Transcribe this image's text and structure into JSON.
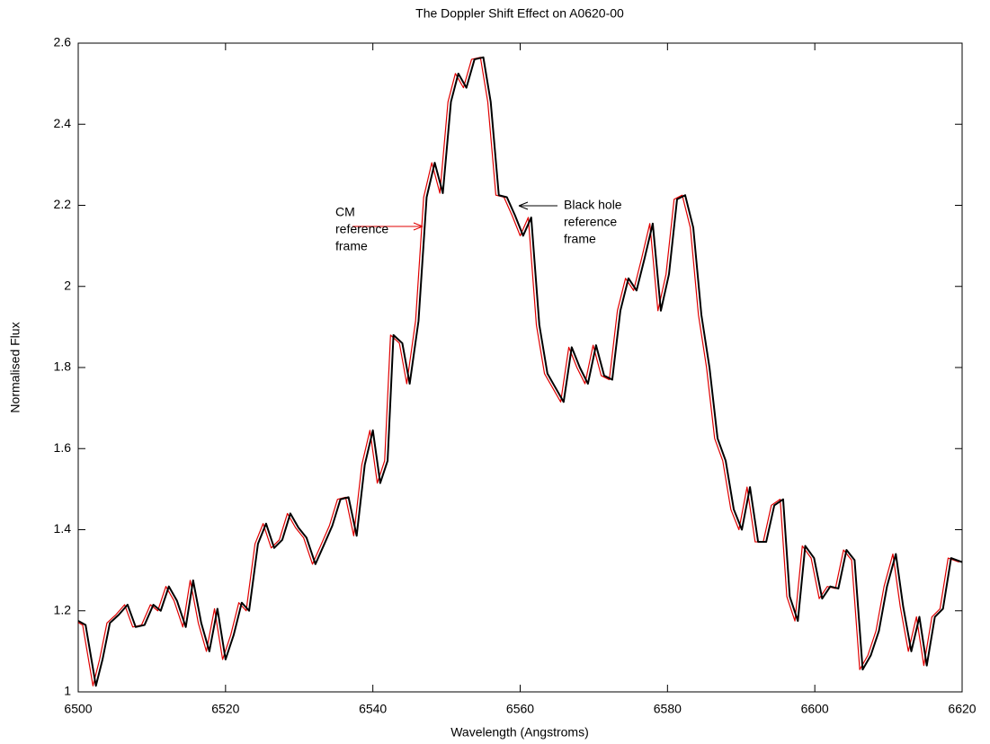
{
  "chart_data": {
    "type": "line",
    "title": "The Doppler Shift Effect on A0620-00",
    "xlabel": "Wavelength (Angstroms)",
    "ylabel": "Normalised Flux",
    "xlim": [
      6500,
      6620
    ],
    "xticks": [
      6500,
      6520,
      6540,
      6560,
      6580,
      6600,
      6620
    ],
    "ylim": [
      1,
      2.6
    ],
    "yticks": [
      1,
      1.2,
      1.4,
      1.6,
      1.8,
      2,
      2.2,
      2.4,
      2.6
    ],
    "annotations": [
      {
        "lines": [
          "CM",
          "reference",
          "frame"
        ],
        "color": "#e00000"
      },
      {
        "lines": [
          "Black hole",
          "reference",
          "frame"
        ],
        "color": "#000000"
      }
    ],
    "series": [
      {
        "color": "#e00000",
        "x": [
          6499.6,
          6500.6,
          6502,
          6502.9,
          6503.9,
          6505.1,
          6506.3,
          6507.4,
          6508.6,
          6509.8,
          6510.8,
          6511.9,
          6513,
          6514.2,
          6515.2,
          6516.3,
          6517.4,
          6518.5,
          6519.6,
          6520.7,
          6521.8,
          6522.8,
          6524,
          6525.1,
          6526.2,
          6527.3,
          6528.4,
          6529.5,
          6530.6,
          6531.8,
          6532.9,
          6534.1,
          6535.2,
          6536.3,
          6537.4,
          6538.5,
          6539.6,
          6540.6,
          6541.6,
          6542.4,
          6543.6,
          6544.6,
          6545.8,
          6546.9,
          6548,
          6549.1,
          6550.2,
          6551.2,
          6552.3,
          6553.4,
          6554.6,
          6555.6,
          6556.7,
          6557.8,
          6558.9,
          6560,
          6561.1,
          6562.2,
          6563.3,
          6564.4,
          6565.5,
          6566.6,
          6567.7,
          6568.8,
          6569.9,
          6571,
          6572.1,
          6573.2,
          6574.3,
          6575.4,
          6576.5,
          6577.6,
          6578.7,
          6579.8,
          6580.9,
          6582,
          6583.1,
          6584.2,
          6585.3,
          6586.4,
          6587.5,
          6588.6,
          6589.7,
          6590.8,
          6591.9,
          6593,
          6594.1,
          6595.3,
          6596.2,
          6597.3,
          6598.3,
          6599.5,
          6600.6,
          6601.7,
          6602.8,
          6603.9,
          6605,
          6606.1,
          6607.2,
          6608.3,
          6609.4,
          6610.6,
          6611.6,
          6612.7,
          6613.8,
          6614.8,
          6615.9,
          6617,
          6618.1,
          6619.6
        ],
        "values": [
          1.175,
          1.165,
          1.015,
          1.08,
          1.17,
          1.19,
          1.215,
          1.16,
          1.165,
          1.215,
          1.2,
          1.26,
          1.225,
          1.16,
          1.275,
          1.17,
          1.1,
          1.205,
          1.08,
          1.14,
          1.22,
          1.2,
          1.365,
          1.415,
          1.355,
          1.375,
          1.44,
          1.405,
          1.38,
          1.315,
          1.36,
          1.41,
          1.475,
          1.48,
          1.385,
          1.56,
          1.645,
          1.515,
          1.57,
          1.88,
          1.86,
          1.76,
          1.915,
          2.22,
          2.305,
          2.23,
          2.455,
          2.525,
          2.49,
          2.56,
          2.565,
          2.455,
          2.225,
          2.22,
          2.175,
          2.125,
          2.17,
          1.905,
          1.785,
          1.75,
          1.715,
          1.85,
          1.8,
          1.76,
          1.855,
          1.78,
          1.77,
          1.94,
          2.02,
          1.99,
          2.07,
          2.155,
          1.94,
          2.03,
          2.215,
          2.225,
          2.145,
          1.93,
          1.8,
          1.625,
          1.57,
          1.45,
          1.4,
          1.505,
          1.37,
          1.37,
          1.46,
          1.475,
          1.235,
          1.175,
          1.36,
          1.33,
          1.23,
          1.26,
          1.255,
          1.35,
          1.325,
          1.055,
          1.09,
          1.15,
          1.26,
          1.34,
          1.21,
          1.1,
          1.185,
          1.065,
          1.185,
          1.205,
          1.33,
          1.32
        ]
      },
      {
        "color": "#000000",
        "x": [
          6500,
          6501,
          6502.4,
          6503.3,
          6504.3,
          6505.5,
          6506.7,
          6507.8,
          6509,
          6510.2,
          6511.2,
          6512.3,
          6513.4,
          6514.6,
          6515.6,
          6516.7,
          6517.8,
          6518.9,
          6520,
          6521.1,
          6522.2,
          6523.2,
          6524.4,
          6525.5,
          6526.6,
          6527.7,
          6528.8,
          6529.9,
          6531,
          6532.2,
          6533.3,
          6534.5,
          6535.6,
          6536.7,
          6537.8,
          6538.9,
          6540,
          6541,
          6542,
          6542.8,
          6544,
          6545,
          6546.2,
          6547.3,
          6548.4,
          6549.5,
          6550.6,
          6551.6,
          6552.7,
          6553.8,
          6555,
          6556,
          6557.1,
          6558.2,
          6559.3,
          6560.4,
          6561.5,
          6562.6,
          6563.7,
          6564.8,
          6565.9,
          6567,
          6568.1,
          6569.2,
          6570.3,
          6571.4,
          6572.5,
          6573.6,
          6574.7,
          6575.8,
          6576.9,
          6578,
          6579.1,
          6580.2,
          6581.3,
          6582.4,
          6583.5,
          6584.6,
          6585.7,
          6586.8,
          6587.9,
          6589,
          6590.1,
          6591.2,
          6592.3,
          6593.4,
          6594.5,
          6595.7,
          6596.6,
          6597.7,
          6598.7,
          6599.9,
          6601,
          6602.1,
          6603.2,
          6604.3,
          6605.4,
          6606.5,
          6607.6,
          6608.7,
          6609.8,
          6611,
          6612,
          6613.1,
          6614.2,
          6615.2,
          6616.3,
          6617.4,
          6618.5,
          6620
        ],
        "values": [
          1.175,
          1.165,
          1.015,
          1.08,
          1.17,
          1.19,
          1.215,
          1.16,
          1.165,
          1.215,
          1.2,
          1.26,
          1.225,
          1.16,
          1.275,
          1.17,
          1.1,
          1.205,
          1.08,
          1.14,
          1.22,
          1.2,
          1.365,
          1.415,
          1.355,
          1.375,
          1.44,
          1.405,
          1.38,
          1.315,
          1.36,
          1.41,
          1.475,
          1.48,
          1.385,
          1.56,
          1.645,
          1.515,
          1.57,
          1.88,
          1.86,
          1.76,
          1.915,
          2.22,
          2.305,
          2.23,
          2.455,
          2.525,
          2.49,
          2.56,
          2.565,
          2.455,
          2.225,
          2.22,
          2.175,
          2.125,
          2.17,
          1.905,
          1.785,
          1.75,
          1.715,
          1.85,
          1.8,
          1.76,
          1.855,
          1.78,
          1.77,
          1.94,
          2.02,
          1.99,
          2.07,
          2.155,
          1.94,
          2.03,
          2.215,
          2.225,
          2.145,
          1.93,
          1.8,
          1.625,
          1.57,
          1.45,
          1.4,
          1.505,
          1.37,
          1.37,
          1.46,
          1.475,
          1.235,
          1.175,
          1.36,
          1.33,
          1.23,
          1.26,
          1.255,
          1.35,
          1.325,
          1.055,
          1.09,
          1.15,
          1.26,
          1.34,
          1.21,
          1.1,
          1.185,
          1.065,
          1.185,
          1.205,
          1.33,
          1.32
        ]
      }
    ]
  }
}
